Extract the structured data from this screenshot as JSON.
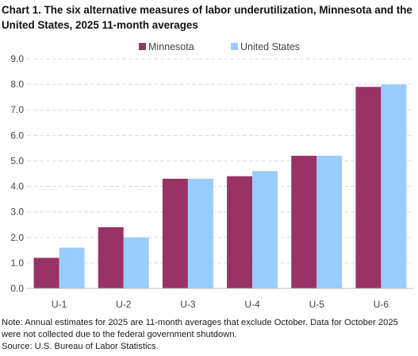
{
  "chart_data": {
    "type": "bar",
    "title": "Chart 1. The six alternative measures of labor underutilization, Minnesota and the United States, 2025 11-month averages",
    "categories": [
      "U-1",
      "U-2",
      "U-3",
      "U-4",
      "U-5",
      "U-6"
    ],
    "series": [
      {
        "name": "Minnesota",
        "color": "#993366",
        "values": [
          1.2,
          2.4,
          4.3,
          4.4,
          5.2,
          7.9
        ]
      },
      {
        "name": "United States",
        "color": "#99ccff",
        "values": [
          1.6,
          2.0,
          4.3,
          4.6,
          5.2,
          8.0
        ]
      }
    ],
    "xlabel": "",
    "ylabel": "",
    "ylim": [
      0,
      9
    ],
    "yticks": [
      "0.0",
      "1.0",
      "2.0",
      "3.0",
      "4.0",
      "5.0",
      "6.0",
      "7.0",
      "8.0",
      "9.0"
    ],
    "grid": true,
    "gridline_color": "#d9d9d9",
    "legend_placement": "top-center",
    "note": "Note:  Annual estimates for 2025 are 11-month averages that exclude October. Data for October 2025 were  not collected due to the  federal government  shutdown.",
    "source": "Source: U.S. Bureau of Labor Statistics."
  }
}
